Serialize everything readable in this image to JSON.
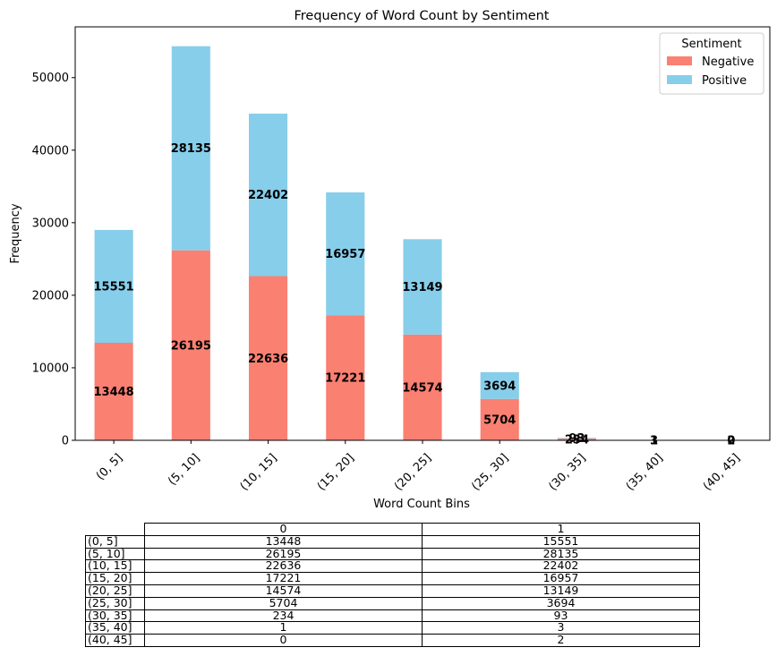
{
  "chart_data": {
    "type": "bar",
    "stacked": true,
    "title": "Frequency of Word Count by Sentiment",
    "xlabel": "Word Count Bins",
    "ylabel": "Frequency",
    "ylim": [
      0,
      57000
    ],
    "yticks": [
      0,
      10000,
      20000,
      30000,
      40000,
      50000
    ],
    "categories": [
      "(0, 5]",
      "(5, 10]",
      "(10, 15]",
      "(15, 20]",
      "(20, 25]",
      "(25, 30]",
      "(30, 35]",
      "(35, 40]",
      "(40, 45]"
    ],
    "series": [
      {
        "name": "Negative",
        "color": "#fa8072",
        "values": [
          13448,
          26195,
          22636,
          17221,
          14574,
          5704,
          234,
          1,
          0
        ]
      },
      {
        "name": "Positive",
        "color": "#87ceeb",
        "values": [
          15551,
          28135,
          22402,
          16957,
          13149,
          3694,
          93,
          3,
          2
        ]
      }
    ],
    "legend": {
      "title": "Sentiment",
      "position": "top-right"
    },
    "grid": false
  },
  "table": {
    "columns": [
      "0",
      "1"
    ],
    "rows": [
      {
        "label": "(0, 5]",
        "cells": [
          "13448",
          "15551"
        ]
      },
      {
        "label": "(5, 10]",
        "cells": [
          "26195",
          "28135"
        ]
      },
      {
        "label": "(10, 15]",
        "cells": [
          "22636",
          "22402"
        ]
      },
      {
        "label": "(15, 20]",
        "cells": [
          "17221",
          "16957"
        ]
      },
      {
        "label": "(20, 25]",
        "cells": [
          "14574",
          "13149"
        ]
      },
      {
        "label": "(25, 30]",
        "cells": [
          "5704",
          "3694"
        ]
      },
      {
        "label": "(30, 35]",
        "cells": [
          "234",
          "93"
        ]
      },
      {
        "label": "(35, 40]",
        "cells": [
          "1",
          "3"
        ]
      },
      {
        "label": "(40, 45]",
        "cells": [
          "0",
          "2"
        ]
      }
    ]
  }
}
